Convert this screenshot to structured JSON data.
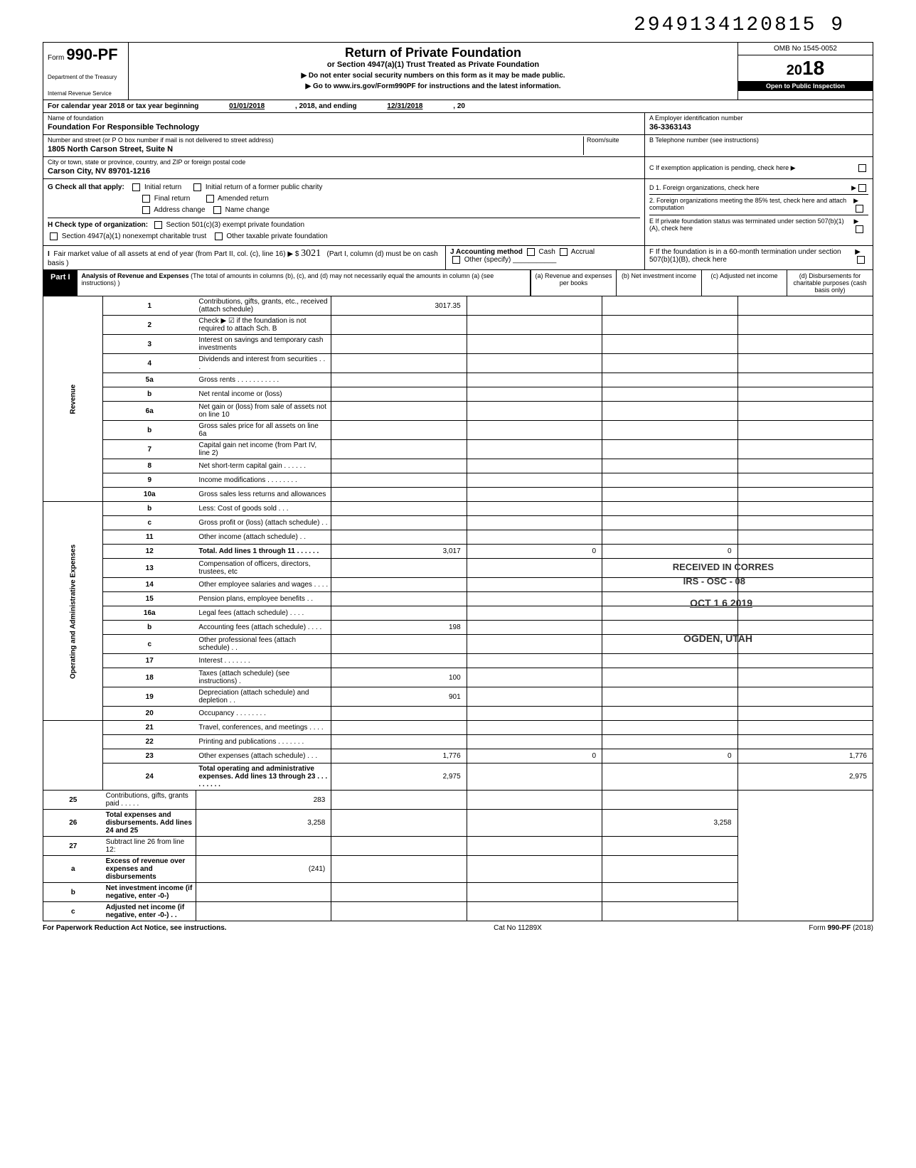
{
  "stamp_number": "2949134120815 9",
  "header": {
    "form_label": "Form",
    "form_number": "990-PF",
    "dept1": "Department of the Treasury",
    "dept2": "Internal Revenue Service",
    "title": "Return of Private Foundation",
    "subtitle": "or Section 4947(a)(1) Trust Treated as Private Foundation",
    "instruction1": "▶ Do not enter social security numbers on this form as it may be made public.",
    "instruction2": "▶ Go to www.irs.gov/Form990PF for instructions and the latest information.",
    "omb": "OMB No 1545-0052",
    "year_prefix": "20",
    "year_suffix": "18",
    "disclosure": "Open to Public Inspection"
  },
  "cal_year": {
    "text1": "For calendar year 2018 or tax year beginning",
    "date1": "01/01/2018",
    "text2": ", 2018, and ending",
    "date2": "12/31/2018",
    "text3": ", 20"
  },
  "name_section": {
    "name_label": "Name of foundation",
    "name_value": "Foundation For Responsible Technology",
    "addr_label": "Number and street (or P O  box number if mail is not delivered to street address)",
    "room_label": "Room/suite",
    "addr_value": "1805 North Carson Street, Suite N",
    "city_label": "City or town, state or province, country, and ZIP or foreign postal code",
    "city_value": "Carson City, NV 89701-1216",
    "ein_label": "A  Employer identification number",
    "ein_value": "36-3363143",
    "phone_label": "B  Telephone number (see instructions)",
    "exempt_label": "C  If exemption application is pending, check here ▶"
  },
  "section_g": {
    "label": "G  Check all that apply:",
    "opt1": "Initial return",
    "opt2": "Initial return of a former public charity",
    "opt3": "Final return",
    "opt4": "Amended return",
    "opt5": "Address change",
    "opt6": "Name change"
  },
  "section_d": {
    "d1": "D  1. Foreign organizations, check here",
    "d2": "2. Foreign organizations meeting the 85% test, check here and attach computation",
    "e": "E  If private foundation status was terminated under section 507(b)(1)(A), check here",
    "f": "F  If the foundation is in a 60-month termination under section 507(b)(1)(B), check here"
  },
  "section_h": {
    "label": "H  Check type of organization:",
    "opt1": "Section 501(c)(3) exempt private foundation",
    "opt2": "Section 4947(a)(1) nonexempt charitable trust",
    "opt3": "Other taxable private foundation"
  },
  "section_i": {
    "label": "I",
    "text1": "Fair market value of all assets at end of year  (from Part II, col. (c), line 16) ▶  $",
    "value": "3021",
    "footnote": "(Part I, column (d) must be on cash basis )"
  },
  "section_j": {
    "label": "J  Accounting method",
    "opt1": "Cash",
    "opt2": "Accrual",
    "opt3": "Other (specify)"
  },
  "part1": {
    "label": "Part I",
    "title": "Analysis of Revenue and Expenses",
    "desc": "(The total of amounts in columns (b), (c), and (d) may not necessarily equal the amounts in column (a) (see instructions) )",
    "col_a": "(a) Revenue and expenses per books",
    "col_b": "(b) Net investment income",
    "col_c": "(c) Adjusted net income",
    "col_d": "(d) Disbursements for charitable purposes (cash basis only)"
  },
  "side_labels": {
    "revenue": "Revenue",
    "operating": "Operating and Administrative Expenses"
  },
  "lines": [
    {
      "num": "1",
      "desc": "Contributions, gifts, grants, etc., received (attach schedule)",
      "a": "3017.35"
    },
    {
      "num": "2",
      "desc": "Check ▶ ☑ if the foundation is not required to attach Sch. B"
    },
    {
      "num": "3",
      "desc": "Interest on savings and temporary cash investments"
    },
    {
      "num": "4",
      "desc": "Dividends and interest from securities   .    .    ."
    },
    {
      "num": "5a",
      "desc": "Gross rents  .    .    .    .    .    .    .    .    .    .    ."
    },
    {
      "num": "b",
      "desc": "Net rental income or (loss)"
    },
    {
      "num": "6a",
      "desc": "Net gain or (loss) from sale of assets not on line 10"
    },
    {
      "num": "b",
      "desc": "Gross sales price for all assets on line 6a"
    },
    {
      "num": "7",
      "desc": "Capital gain net income (from Part IV, line 2)"
    },
    {
      "num": "8",
      "desc": "Net short-term capital gain  .    .    .    .    .    ."
    },
    {
      "num": "9",
      "desc": "Income modifications   .    .    .    .    .    .    .    ."
    },
    {
      "num": "10a",
      "desc": "Gross sales less returns and allowances"
    },
    {
      "num": "b",
      "desc": "Less: Cost of goods sold    .    .    ."
    },
    {
      "num": "c",
      "desc": "Gross profit or (loss) (attach schedule)  .    ."
    },
    {
      "num": "11",
      "desc": "Other income (attach schedule)    .    ."
    },
    {
      "num": "12",
      "desc": "Total. Add lines 1 through 11  .    .    .    .    .    .",
      "bold": true,
      "a": "3,017",
      "b": "0",
      "c": "0"
    },
    {
      "num": "13",
      "desc": "Compensation of officers, directors, trustees, etc"
    },
    {
      "num": "14",
      "desc": "Other employee salaries and wages  .    .    .    ."
    },
    {
      "num": "15",
      "desc": "Pension plans, employee benefits    .    ."
    },
    {
      "num": "16a",
      "desc": "Legal fees (attach schedule)    .    .    .    ."
    },
    {
      "num": "b",
      "desc": "Accounting fees (attach schedule)  .    .    .    .",
      "a": "198"
    },
    {
      "num": "c",
      "desc": "Other professional fees (attach schedule)  .    ."
    },
    {
      "num": "17",
      "desc": "Interest  .    .    .    .    .    .    ."
    },
    {
      "num": "18",
      "desc": "Taxes (attach schedule) (see instructions)    .",
      "a": "100"
    },
    {
      "num": "19",
      "desc": "Depreciation (attach schedule) and depletion .    .",
      "a": "901"
    },
    {
      "num": "20",
      "desc": "Occupancy .    .    .    .    .    .    .    ."
    },
    {
      "num": "21",
      "desc": "Travel, conferences, and meetings  .    .    .    ."
    },
    {
      "num": "22",
      "desc": "Printing and publications    .    .    .    .    .    .    ."
    },
    {
      "num": "23",
      "desc": "Other expenses (attach schedule)    .    .    .",
      "a": "1,776",
      "b": "0",
      "c": "0",
      "d": "1,776"
    },
    {
      "num": "24",
      "desc": "Total operating and administrative expenses. Add lines 13 through 23 .    .    .    .    .    .    .    .    .",
      "bold": true,
      "a": "2,975",
      "d": "2,975"
    },
    {
      "num": "25",
      "desc": "Contributions, gifts, grants paid    .    .    .    .    .",
      "a": "283"
    },
    {
      "num": "26",
      "desc": "Total expenses and disbursements. Add lines 24 and 25",
      "bold": true,
      "a": "3,258",
      "d": "3,258"
    },
    {
      "num": "27",
      "desc": "Subtract line 26 from line 12:"
    },
    {
      "num": "a",
      "desc": "Excess of revenue over expenses and disbursements",
      "bold": true,
      "a": "(241)"
    },
    {
      "num": "b",
      "desc": "Net investment income (if negative, enter -0-)",
      "bold": true
    },
    {
      "num": "c",
      "desc": "Adjusted net income (if negative, enter -0-)  .    .",
      "bold": true
    }
  ],
  "footer": {
    "left": "For Paperwork Reduction Act Notice, see instructions.",
    "center": "Cat  No  11289X",
    "right": "Form 990-PF (2018)"
  },
  "stamps": {
    "received": "RECEIVED IN CORRES",
    "irs": "IRS - OSC - 08",
    "oct": "OCT 1 6 2019",
    "ogden": "OGDEN, UTAH"
  }
}
